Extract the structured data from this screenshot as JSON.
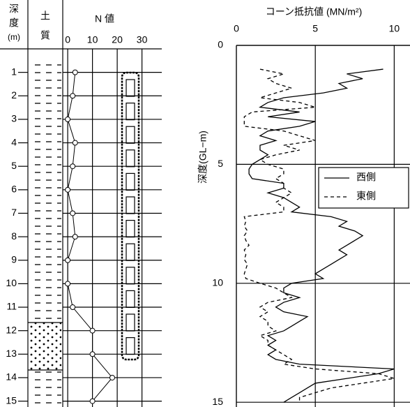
{
  "chart_data": [
    {
      "type": "n-value",
      "depth_label": [
        "深",
        "度",
        "(m)"
      ],
      "soil_label": [
        "土",
        "質"
      ],
      "n_label": "N 値",
      "y": [
        1,
        2,
        3,
        4,
        5,
        6,
        7,
        8,
        9,
        10,
        11,
        12,
        13,
        14,
        15
      ],
      "series": [
        {
          "color": "#000000",
          "values": [
            3,
            2,
            0,
            3,
            2,
            0,
            2,
            3,
            0,
            0,
            2,
            10,
            10,
            18,
            10
          ]
        }
      ],
      "xlim": [
        -2,
        38
      ],
      "xticks": [
        0,
        10,
        20,
        30
      ],
      "ylim": [
        0,
        15.25
      ],
      "yticks": [
        1,
        2,
        3,
        4,
        5,
        6,
        7,
        8,
        9,
        10,
        11,
        12,
        13,
        14,
        15
      ],
      "grid": true
    },
    {
      "type": "line",
      "title": "コーン抵抗値 (MN/m²)",
      "ylabel": "深度(GL−m)",
      "y": [
        1,
        1.2,
        1.4,
        1.6,
        1.8,
        2,
        2.2,
        2.4,
        2.6,
        2.8,
        3,
        3.2,
        3.4,
        3.6,
        3.8,
        4,
        4.2,
        4.4,
        4.6,
        4.8,
        5,
        5.2,
        5.4,
        5.6,
        5.8,
        6,
        6.2,
        6.4,
        6.6,
        6.8,
        7,
        7.2,
        7.4,
        7.6,
        7.8,
        8,
        8.2,
        8.4,
        8.6,
        8.8,
        9,
        9.2,
        9.4,
        9.6,
        9.8,
        10,
        10.2,
        10.4,
        10.6,
        10.8,
        11,
        11.2,
        11.4,
        11.6,
        11.8,
        12,
        12.2,
        12.4,
        12.6,
        12.8,
        13,
        13.2,
        13.4,
        13.6,
        13.8,
        14,
        14.2,
        14.4,
        14.6,
        14.8,
        15
      ],
      "series": [
        {
          "name": "西側",
          "color": "#000000",
          "dash": "solid",
          "values": [
            9.3,
            7,
            8,
            6.5,
            7,
            5.5,
            3,
            2,
            1.5,
            4,
            2,
            5,
            4,
            2,
            1.5,
            2.5,
            1.5,
            1.5,
            2,
            1.5,
            1,
            0.8,
            0.8,
            1,
            3,
            3,
            2,
            3,
            3.5,
            4,
            3.5,
            6,
            7,
            6.5,
            7.5,
            8,
            7.5,
            7,
            6.5,
            7,
            6.5,
            6,
            5.5,
            5,
            5.5,
            3.5,
            3,
            3,
            4,
            3,
            2.5,
            3,
            4.5,
            4,
            3.5,
            3,
            2,
            2.5,
            2,
            2.5,
            2,
            2.5,
            4,
            10,
            9,
            7,
            5,
            4.5,
            4,
            3.5,
            3
          ]
        },
        {
          "name": "東側",
          "color": "#000000",
          "dash": "dashed",
          "values": [
            1.5,
            3,
            2,
            2.5,
            3.5,
            2.5,
            1.5,
            4,
            5,
            1,
            0.5,
            0.5,
            0.5,
            3,
            4,
            5,
            3,
            4,
            2.5,
            1.5,
            2,
            3,
            3,
            2.5,
            3,
            3,
            3.5,
            3,
            2.5,
            3,
            3,
            0.5,
            0.6,
            0.5,
            0.7,
            0.5,
            0.6,
            0.8,
            0.5,
            0.6,
            0.5,
            0.7,
            0.6,
            0.5,
            0.6,
            1.5,
            2.5,
            3,
            3.5,
            2,
            1.5,
            2,
            1.5,
            2,
            2,
            2.5,
            1.5,
            2,
            2,
            2.5,
            3,
            3.5,
            3,
            5,
            9,
            10,
            8,
            6,
            5,
            4,
            4
          ]
        }
      ],
      "xlim": [
        0,
        11
      ],
      "xticks": [
        0,
        5,
        10
      ],
      "ylim": [
        0,
        15.2
      ],
      "yticks": [
        0,
        5,
        10,
        15
      ],
      "grid": true,
      "legend": "right"
    }
  ]
}
